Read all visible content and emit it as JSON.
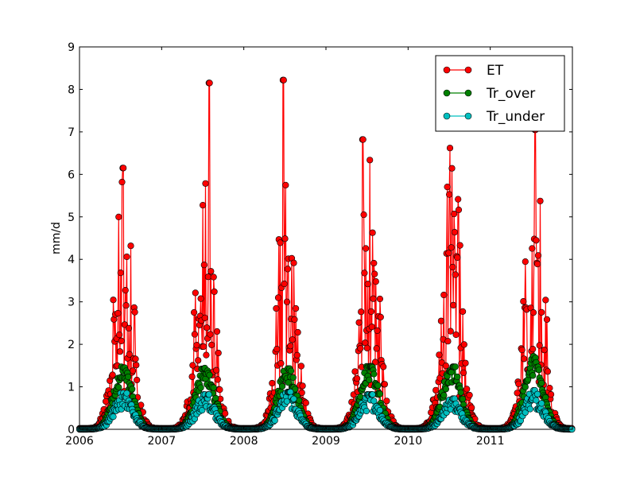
{
  "chart_data": {
    "type": "line",
    "title": "",
    "xlabel": "",
    "ylabel": "mm/d",
    "xlim": [
      2006,
      2012
    ],
    "ylim": [
      0,
      9
    ],
    "x_ticks": [
      "2006",
      "2007",
      "2008",
      "2009",
      "2010",
      "2011"
    ],
    "y_ticks": [
      "0",
      "1",
      "2",
      "3",
      "4",
      "5",
      "6",
      "7",
      "8",
      "9"
    ],
    "grid": false,
    "legend_position": "top-right",
    "marker": "circle",
    "series": [
      {
        "name": "ET",
        "color": "#ff0000",
        "seasonal_peaks": [
          {
            "year": 2006,
            "peak": 6.15,
            "summer_typical": 3.2
          },
          {
            "year": 2007,
            "peak": 8.15,
            "summer_typical": 3.3
          },
          {
            "year": 2008,
            "peak": 8.22,
            "summer_typical": 3.6
          },
          {
            "year": 2009,
            "peak": 6.82,
            "summer_typical": 3.5
          },
          {
            "year": 2010,
            "peak": 6.62,
            "summer_typical": 3.8
          },
          {
            "year": 2011,
            "peak": 7.05,
            "summer_typical": 3.7
          }
        ],
        "winter_level": 0.02
      },
      {
        "name": "Tr_over",
        "color": "#008000",
        "seasonal_peaks": [
          {
            "year": 2006,
            "peak": 1.45
          },
          {
            "year": 2007,
            "peak": 1.42
          },
          {
            "year": 2008,
            "peak": 1.43
          },
          {
            "year": 2009,
            "peak": 1.48
          },
          {
            "year": 2010,
            "peak": 1.47
          },
          {
            "year": 2011,
            "peak": 1.65
          }
        ],
        "winter_level": 0.0
      },
      {
        "name": "Tr_under",
        "color": "#00bfbf",
        "seasonal_peaks": [
          {
            "year": 2006,
            "peak": 0.85
          },
          {
            "year": 2007,
            "peak": 0.82
          },
          {
            "year": 2008,
            "peak": 0.88
          },
          {
            "year": 2009,
            "peak": 0.82
          },
          {
            "year": 2010,
            "peak": 0.72
          },
          {
            "year": 2011,
            "peak": 0.88
          }
        ],
        "winter_level": 0.0
      }
    ]
  }
}
